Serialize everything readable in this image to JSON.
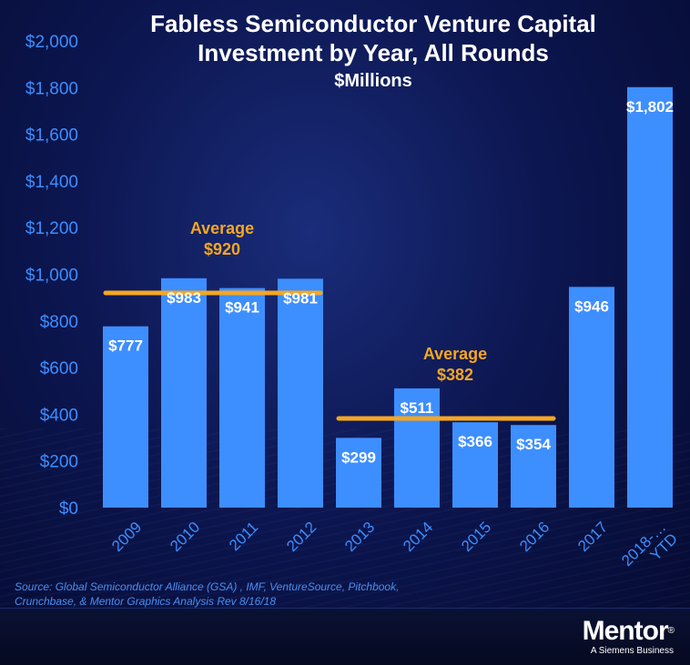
{
  "chart_data": {
    "type": "bar",
    "title_lines": [
      "Fabless Semiconductor Venture Capital",
      "Investment by Year, All Rounds"
    ],
    "subtitle": "$Millions",
    "categories": [
      "2009",
      "2010",
      "2011",
      "2012",
      "2013",
      "2014",
      "2015",
      "2016",
      "2017",
      "2018-… YTD"
    ],
    "values": [
      777,
      983,
      941,
      981,
      299,
      511,
      366,
      354,
      946,
      1802
    ],
    "data_labels": [
      "$777",
      "$983",
      "$941",
      "$981",
      "$299",
      "$511",
      "$366",
      "$354",
      "$946",
      "$1,802"
    ],
    "ylim": [
      0,
      2000
    ],
    "yticks": [
      0,
      200,
      400,
      600,
      800,
      1000,
      1200,
      1400,
      1600,
      1800,
      2000
    ],
    "ytick_labels": [
      "$0",
      "$200",
      "$400",
      "$600",
      "$800",
      "$1,000",
      "$1,200",
      "$1,400",
      "$1,600",
      "$1,800",
      "$2,000"
    ],
    "grid": false,
    "bar_color": "#3d8eff",
    "annotations": [
      {
        "label": "Average",
        "value_label": "$920",
        "value": 920,
        "from_category": "2009",
        "to_category": "2012",
        "color": "#f5a623"
      },
      {
        "label": "Average",
        "value_label": "$382",
        "value": 382,
        "from_category": "2013",
        "to_category": "2016",
        "color": "#f5a623"
      }
    ]
  },
  "source_text": "Source: Global Semiconductor Alliance (GSA) , IMF, VentureSource, Pitchbook, Crunchbase, & Mentor Graphics Analysis Rev 8/16/18",
  "logo": {
    "brand": "Mentor",
    "registered": "®",
    "tagline": "A Siemens Business"
  },
  "colors": {
    "axis_text": "#3d8eff",
    "annotation": "#f5a623",
    "source_text": "#4a8ff0"
  }
}
